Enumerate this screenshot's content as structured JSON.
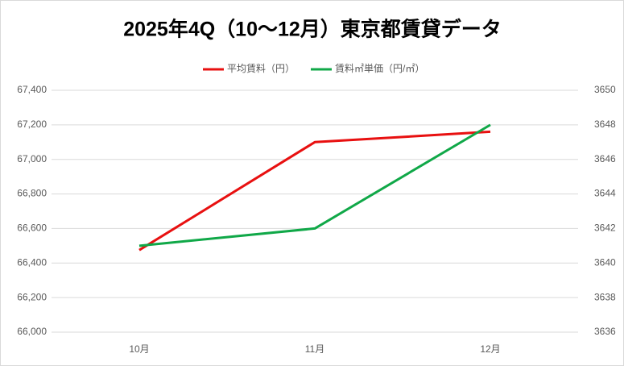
{
  "chart_data": {
    "type": "line",
    "title": "2025年4Q（10～12月）東京都賃貸データ",
    "categories": [
      "10月",
      "11月",
      "12月"
    ],
    "series": [
      {
        "name": "平均賃料（円）",
        "color": "#e81010",
        "values": [
          66475,
          67100,
          67160
        ]
      },
      {
        "name": "賃料㎡単価（円/㎡）",
        "color": "#10a848",
        "values": [
          3641,
          3642,
          3648
        ],
        "axis": "y2"
      }
    ],
    "ylim": [
      66000,
      67400
    ],
    "yticks": [
      {
        "value": 66000,
        "label": "66,000"
      },
      {
        "value": 66200,
        "label": "66,200"
      },
      {
        "value": 66400,
        "label": "66,400"
      },
      {
        "value": 66600,
        "label": "66,600"
      },
      {
        "value": 66800,
        "label": "66,800"
      },
      {
        "value": 67000,
        "label": "67,000"
      },
      {
        "value": 67200,
        "label": "67,200"
      },
      {
        "value": 67400,
        "label": "67,400"
      }
    ],
    "y2lim": [
      3636,
      3650
    ],
    "y2ticks": [
      3636,
      3638,
      3640,
      3642,
      3644,
      3646,
      3648,
      3650
    ],
    "grid": true,
    "legend": "top"
  }
}
